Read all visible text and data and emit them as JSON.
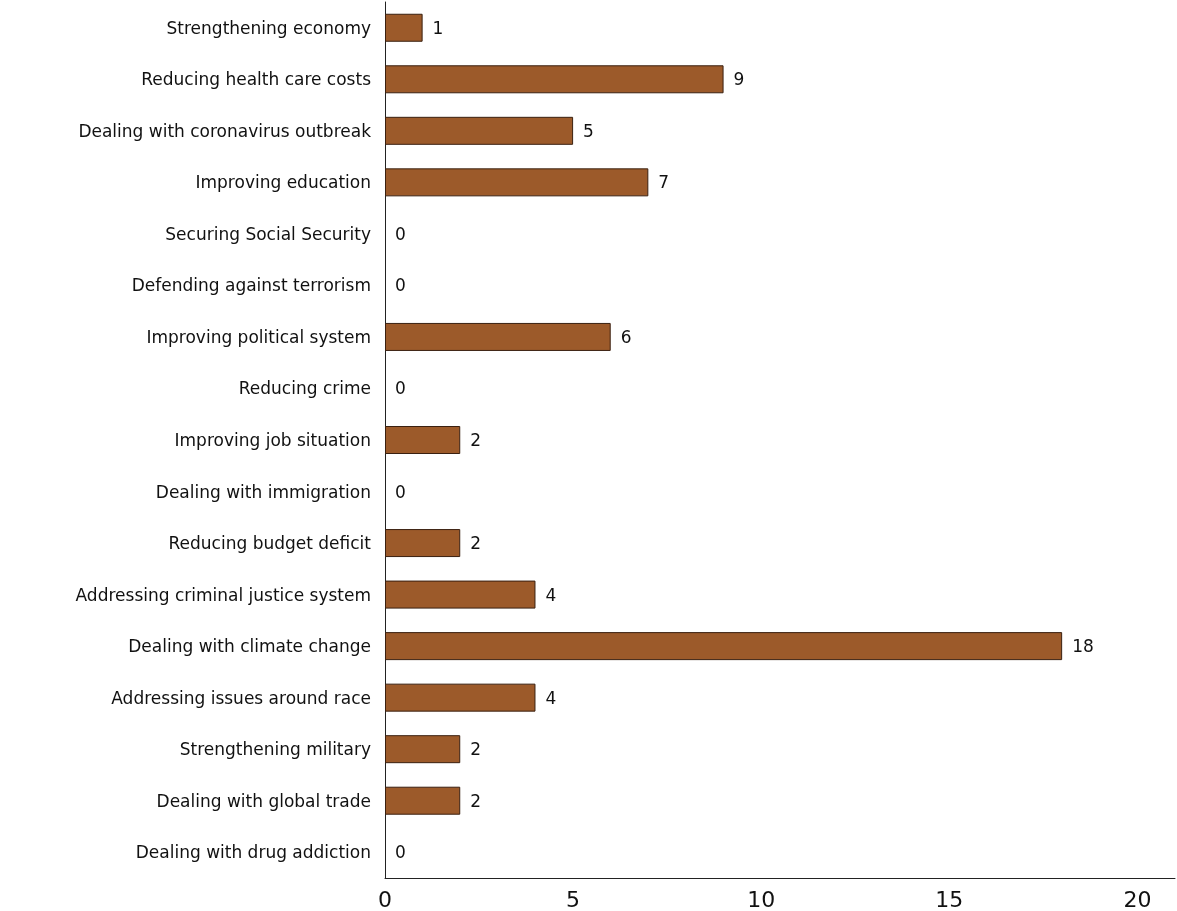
{
  "chart_data": {
    "type": "bar",
    "orientation": "horizontal",
    "categories": [
      "Strengthening economy",
      "Reducing health care costs",
      "Dealing with coronavirus outbreak",
      "Improving education",
      "Securing Social Security",
      "Defending against terrorism",
      "Improving political system",
      "Reducing crime",
      "Improving job situation",
      "Dealing with immigration",
      "Reducing budget deficit",
      "Addressing criminal justice system",
      "Dealing with climate change",
      "Addressing issues around race",
      "Strengthening military",
      "Dealing with global trade",
      "Dealing with drug addiction"
    ],
    "values": [
      1,
      9,
      5,
      7,
      0,
      0,
      6,
      0,
      2,
      0,
      2,
      4,
      18,
      4,
      2,
      2,
      0
    ],
    "data_labels": true,
    "color": "#9c5a2a",
    "xlim": [
      0,
      21
    ],
    "xticks": [
      0,
      5,
      10,
      15,
      20
    ],
    "grid": false
  }
}
